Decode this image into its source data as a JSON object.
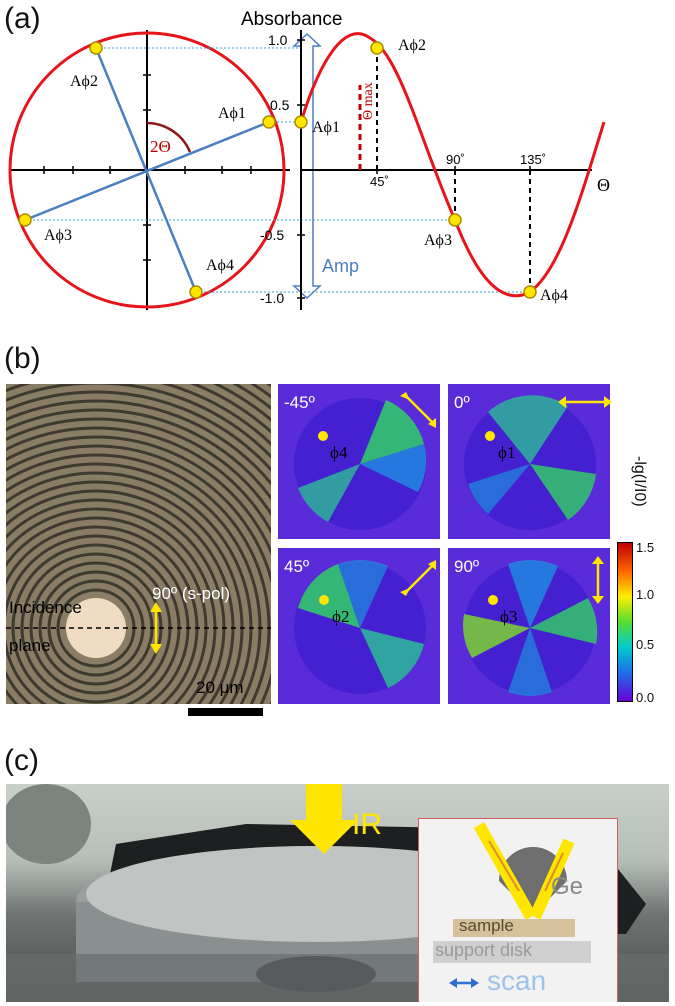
{
  "panel_a": {
    "label": "(a)",
    "y_title": "Absorbance",
    "x_axis_symbol": "Θ",
    "y_ticks": [
      "1.0",
      "0.5",
      "-0.5",
      "-1.0"
    ],
    "x_ticks": [
      "45˚",
      "90˚",
      "135˚"
    ],
    "angle_label": "2Θ",
    "theta_max_label": "Θ max",
    "amp_label": "Amp",
    "circle_points": [
      "Aϕ1",
      "Aϕ2",
      "Aϕ3",
      "Aϕ4"
    ],
    "curve_points": [
      "Aϕ1",
      "Aϕ2",
      "Aϕ3",
      "Aϕ4"
    ],
    "colors": {
      "curve": "#e8141b",
      "blue": "#4a7fc1",
      "marker": "#ffe600",
      "theta_max": "#c00000"
    }
  },
  "panel_b": {
    "label": "(b)",
    "micrograph": {
      "polarization_label": "90º (s-pol)",
      "incidence_label_1": "Incidence",
      "incidence_label_2": "plane",
      "scale_label": "20 μm"
    },
    "maps": [
      {
        "angle": "-45º",
        "phi": "ϕ4"
      },
      {
        "angle": "0º",
        "phi": "ϕ1"
      },
      {
        "angle": "45º",
        "phi": "ϕ2"
      },
      {
        "angle": "90º",
        "phi": "ϕ3"
      }
    ],
    "colorbar": {
      "title": "-lg(I/I0)",
      "ticks": [
        "1.5",
        "1.0",
        "0.5",
        "0.0"
      ]
    }
  },
  "panel_c": {
    "label": "(c)",
    "ir_label": "IR",
    "inset": {
      "ge_label": "Ge",
      "sample_label": "sample",
      "support_label": "support disk",
      "scan_label": "scan"
    }
  }
}
